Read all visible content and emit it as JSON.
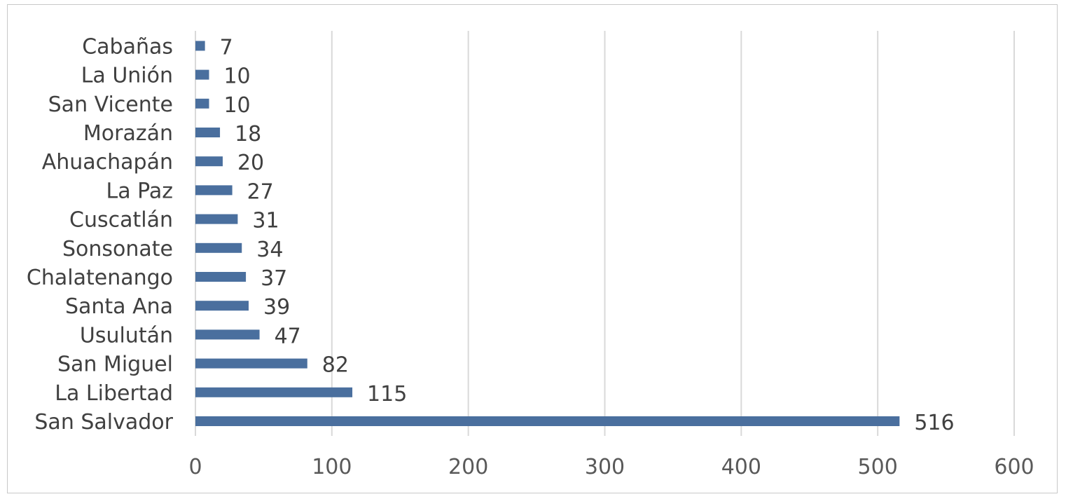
{
  "chart_data": {
    "type": "bar",
    "orientation": "horizontal",
    "title": "",
    "xlabel": "",
    "ylabel": "",
    "categories": [
      "San Salvador",
      "La Libertad",
      "San Miguel",
      "Usulután",
      "Santa Ana",
      "Chalatenango",
      "Sonsonate",
      "Cuscatlán",
      "La Paz",
      "Ahuachapán",
      "Morazán",
      "San Vicente",
      "La Unión",
      "Cabañas"
    ],
    "values": [
      516,
      115,
      82,
      47,
      39,
      37,
      34,
      31,
      27,
      20,
      18,
      10,
      10,
      7
    ],
    "xlim": [
      0,
      600
    ],
    "xticks": [
      0,
      100,
      200,
      300,
      400,
      500,
      600
    ],
    "grid": "vertical",
    "legend": "none",
    "bar_color": "#4a6f9e",
    "data_labels": true
  }
}
